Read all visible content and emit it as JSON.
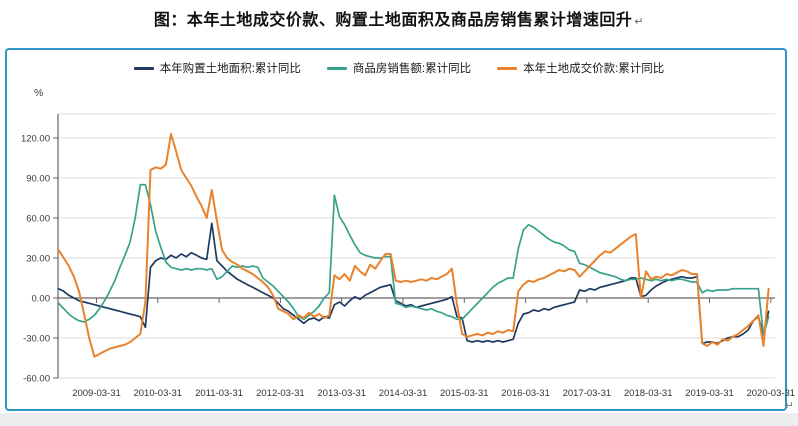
{
  "page": {
    "title": "图：本年土地成交价款、购置土地面积及商品房销售累计增速回升",
    "return_mark": "↵"
  },
  "chart_data": {
    "type": "line",
    "title": "本年土地成交价款、购置土地面积及商品房销售累计增速回升",
    "unit_label": "%",
    "x_interval": "monthly",
    "x_start_month": "2008-08",
    "x_end_month": "2020-03",
    "grid": true,
    "legend_position": "top",
    "ylim": [
      -60,
      135
    ],
    "y_ticks": [
      120,
      90,
      60,
      30,
      0,
      -30,
      -60
    ],
    "y_tick_labels": [
      "120.00",
      "90.00",
      "60.00",
      "30.00",
      "0.00",
      "-30.00",
      "-60.00"
    ],
    "x_tick_labels": [
      "2009-03-31",
      "2010-03-31",
      "2011-03-31",
      "2012-03-31",
      "2013-03-31",
      "2014-03-31",
      "2015-03-31",
      "2016-03-31",
      "2017-03-31",
      "2018-03-31",
      "2019-03-31",
      "2020-03-31"
    ],
    "frame_color": "#2f96c4",
    "grid_color": "#dcdcdc",
    "axis_color": "#666666",
    "series": [
      {
        "name": "本年购置土地面积:累计同比",
        "color": "#1f3a60",
        "width": 1.7,
        "values": [
          7,
          5,
          2,
          0,
          -2,
          -3,
          -4,
          -5,
          -6,
          -7,
          -8,
          -9,
          -10,
          -11,
          -12,
          -13,
          -14,
          -22,
          23,
          28,
          30,
          29,
          32,
          30,
          33,
          31,
          34,
          32,
          30,
          29,
          56,
          28,
          24,
          20,
          17,
          14,
          12,
          10,
          8,
          6,
          4,
          2,
          0,
          -4,
          -8,
          -10,
          -13,
          -16,
          -19,
          -16,
          -15,
          -17,
          -14,
          -15,
          -5,
          -3,
          -6,
          -2,
          1,
          -1,
          2,
          4,
          6,
          8,
          9,
          10,
          -2,
          -4,
          -6,
          -5,
          -7,
          -6,
          -5,
          -4,
          -3,
          -2,
          -1,
          1,
          -14,
          -15,
          -32,
          -33,
          -32,
          -33,
          -32,
          -33,
          -32,
          -33,
          -32,
          -31,
          -19,
          -12,
          -11,
          -9,
          -10,
          -8,
          -9,
          -7,
          -6,
          -5,
          -4,
          -3,
          6,
          5,
          7,
          6,
          8,
          9,
          10,
          11,
          12,
          13,
          15,
          15,
          1,
          2,
          6,
          9,
          11,
          13,
          14,
          15,
          16,
          15,
          15,
          16,
          -34,
          -33,
          -33,
          -34,
          -32,
          -30,
          -29,
          -29,
          -27,
          -24,
          -17,
          -14,
          -28,
          -10
        ]
      },
      {
        "name": "商品房销售额:累计同比",
        "color": "#36a28b",
        "width": 1.7,
        "values": [
          -4,
          -8,
          -12,
          -15,
          -17,
          -18,
          -16,
          -13,
          -8,
          -2,
          5,
          13,
          23,
          32,
          42,
          60,
          85,
          85,
          70,
          50,
          38,
          27,
          23,
          22,
          21,
          22,
          21,
          22,
          22,
          21,
          22,
          14,
          16,
          20,
          24,
          23,
          24,
          23,
          24,
          23,
          15,
          12,
          9,
          5,
          1,
          -3,
          -8,
          -14,
          -16,
          -13,
          -10,
          -6,
          0,
          4,
          77,
          61,
          55,
          47,
          40,
          34,
          32,
          31,
          30,
          30,
          31,
          31,
          -4,
          -5,
          -7,
          -6,
          -7,
          -8,
          -9,
          -8,
          -10,
          -11,
          -13,
          -14,
          -16,
          -16,
          -12,
          -8,
          -4,
          0,
          4,
          8,
          11,
          13,
          15,
          15,
          37,
          51,
          55,
          53,
          50,
          47,
          44,
          42,
          41,
          39,
          36,
          35,
          26,
          25,
          23,
          21,
          19,
          18,
          17,
          16,
          14,
          13,
          14,
          14,
          15,
          14,
          13,
          14,
          13,
          14,
          13,
          14,
          14,
          13,
          12,
          12,
          4,
          6,
          5,
          6,
          6,
          6,
          7,
          7,
          7,
          7,
          7,
          7,
          -28,
          -14
        ]
      },
      {
        "name": "本年土地成交价款:累计同比",
        "color": "#e8822d",
        "width": 2,
        "values": [
          36,
          30,
          24,
          16,
          5,
          -12,
          -30,
          -44,
          -42,
          -40,
          -38,
          -37,
          -36,
          -35,
          -33,
          -30,
          -27,
          -3,
          96,
          98,
          97,
          100,
          123,
          110,
          96,
          90,
          84,
          76,
          69,
          60,
          81,
          58,
          36,
          30,
          27,
          25,
          22,
          20,
          18,
          15,
          12,
          8,
          2,
          -8,
          -10,
          -12,
          -16,
          -13,
          -15,
          -11,
          -14,
          -12,
          -15,
          -13,
          17,
          14,
          18,
          13,
          24,
          20,
          17,
          25,
          22,
          28,
          33,
          33,
          13,
          12,
          13,
          12,
          13,
          14,
          13,
          15,
          14,
          16,
          18,
          22,
          -5,
          -27,
          -29,
          -28,
          -27,
          -28,
          -26,
          -27,
          -25,
          -26,
          -24,
          -25,
          5,
          10,
          13,
          12,
          14,
          15,
          17,
          19,
          21,
          20,
          22,
          21,
          16,
          20,
          24,
          28,
          32,
          35,
          34,
          37,
          40,
          43,
          46,
          48,
          0,
          20,
          14,
          16,
          15,
          18,
          17,
          19,
          21,
          20,
          18,
          18,
          -34,
          -36,
          -33,
          -35,
          -31,
          -32,
          -29,
          -27,
          -24,
          -21,
          -17,
          -13,
          -36,
          7
        ]
      }
    ]
  }
}
